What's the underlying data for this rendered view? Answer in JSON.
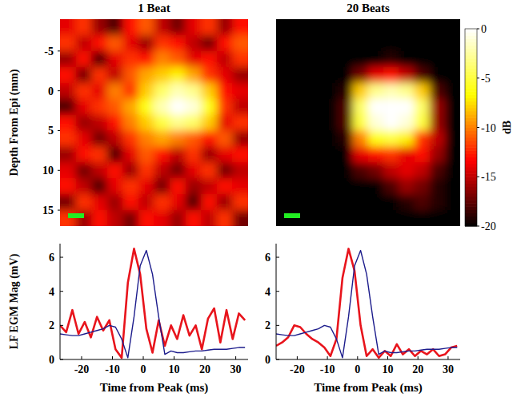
{
  "chart_data": [
    {
      "type": "heatmap",
      "title": "1 Beat",
      "y_label": "Depth From Epi (mm)",
      "y": [
        -8,
        -6,
        -4,
        -2,
        0,
        2,
        4,
        6,
        8,
        10,
        12,
        14,
        16
      ],
      "ylim": [
        -9,
        17
      ],
      "yticks": [
        -5,
        0,
        5,
        10,
        15
      ],
      "zlim": [
        -20,
        0
      ],
      "cells": [
        [
          -14,
          -12,
          -16,
          -18,
          -13,
          -11,
          -15,
          -17,
          -14,
          -12,
          -16,
          -13
        ],
        [
          -12,
          -15,
          -13,
          -11,
          -14,
          -16,
          -12,
          -13,
          -15,
          -17,
          -13,
          -11
        ],
        [
          -16,
          -13,
          -18,
          -14,
          -12,
          -13,
          -10,
          -11,
          -14,
          -13,
          -15,
          -12
        ],
        [
          -13,
          -17,
          -12,
          -15,
          -11,
          -9,
          -8,
          -7,
          -9,
          -12,
          -14,
          -16
        ],
        [
          -15,
          -12,
          -14,
          -10,
          -12,
          -8,
          -4,
          -2,
          -3,
          -8,
          -13,
          -14
        ],
        [
          -18,
          -14,
          -12,
          -11,
          -9,
          -6,
          -2,
          0,
          -1,
          -6,
          -12,
          -15
        ],
        [
          -13,
          -16,
          -15,
          -13,
          -10,
          -8,
          -5,
          -3,
          -4,
          -8,
          -14,
          -12
        ],
        [
          -12,
          -14,
          -17,
          -15,
          -12,
          -10,
          -9,
          -10,
          -11,
          -13,
          -11,
          -16
        ],
        [
          -16,
          -13,
          -12,
          -18,
          -14,
          -11,
          -13,
          -15,
          -12,
          -16,
          -14,
          -13
        ],
        [
          -14,
          -17,
          -15,
          -13,
          -16,
          -12,
          -15,
          -17,
          -14,
          -12,
          -17,
          -15
        ],
        [
          -13,
          -15,
          -18,
          -14,
          -12,
          -14,
          -17,
          -13,
          -16,
          -15,
          -13,
          -14
        ],
        [
          -17,
          -12,
          -14,
          -16,
          -13,
          -15,
          -12,
          -14,
          -18,
          -13,
          -16,
          -12
        ],
        [
          -12,
          -16,
          -13,
          -15,
          -17,
          -13,
          -14,
          -16,
          -13,
          -15,
          -12,
          -17
        ]
      ]
    },
    {
      "type": "heatmap",
      "title": "20 Beats",
      "y": [
        -8,
        -6,
        -4,
        -2,
        0,
        2,
        4,
        6,
        8,
        10,
        12,
        14,
        16
      ],
      "ylim": [
        -9,
        17
      ],
      "zlim": [
        -20,
        0
      ],
      "zticks": [
        0,
        -5,
        -10,
        -15,
        -20
      ],
      "colorbar_label": "dB",
      "cells": [
        [
          -20,
          -20,
          -20,
          -20,
          -20,
          -20,
          -20,
          -20,
          -20,
          -20,
          -20,
          -20
        ],
        [
          -20,
          -20,
          -20,
          -20,
          -20,
          -20,
          -20,
          -20,
          -20,
          -20,
          -20,
          -20
        ],
        [
          -20,
          -20,
          -20,
          -20,
          -20,
          -20,
          -20,
          -19,
          -20,
          -20,
          -20,
          -20
        ],
        [
          -20,
          -20,
          -20,
          -20,
          -20,
          -17,
          -14,
          -13,
          -15,
          -18,
          -20,
          -20
        ],
        [
          -20,
          -20,
          -20,
          -20,
          -19,
          -8,
          -3,
          -2,
          -3,
          -8,
          -18,
          -20
        ],
        [
          -20,
          -20,
          -20,
          -20,
          -18,
          -4,
          0,
          0,
          0,
          -4,
          -16,
          -20
        ],
        [
          -20,
          -20,
          -20,
          -20,
          -18,
          -5,
          -1,
          0,
          -1,
          -5,
          -16,
          -20
        ],
        [
          -20,
          -20,
          -20,
          -20,
          -19,
          -10,
          -6,
          -5,
          -7,
          -12,
          -15,
          -20
        ],
        [
          -20,
          -20,
          -20,
          -20,
          -20,
          -14,
          -13,
          -12,
          -14,
          -13,
          -16,
          -20
        ],
        [
          -20,
          -20,
          -20,
          -20,
          -20,
          -18,
          -17,
          -15,
          -14,
          -15,
          -18,
          -20
        ],
        [
          -20,
          -20,
          -20,
          -20,
          -20,
          -20,
          -20,
          -18,
          -16,
          -17,
          -19,
          -20
        ],
        [
          -20,
          -20,
          -20,
          -20,
          -20,
          -20,
          -20,
          -20,
          -19,
          -18,
          -19,
          -20
        ],
        [
          -20,
          -20,
          -20,
          -20,
          -20,
          -20,
          -20,
          -20,
          -20,
          -20,
          -20,
          -20
        ]
      ]
    },
    {
      "type": "line",
      "x_label": "Time from Peak (ms)",
      "y_label": "LF EGM Mag (mV)",
      "x": [
        -27,
        -25,
        -23,
        -21,
        -19,
        -17,
        -15,
        -13,
        -11,
        -9,
        -7,
        -5,
        -3,
        -1,
        1,
        3,
        5,
        7,
        9,
        11,
        13,
        15,
        17,
        19,
        21,
        23,
        25,
        27,
        29,
        31,
        33
      ],
      "xlim": [
        -27,
        34
      ],
      "xticks": [
        -20,
        -10,
        0,
        10,
        20,
        30
      ],
      "ylim": [
        0,
        6.8
      ],
      "yticks": [
        0,
        2,
        4,
        6
      ],
      "series": [
        {
          "color": "#e8141c",
          "values": [
            2.0,
            1.6,
            2.9,
            1.5,
            2.2,
            1.3,
            2.5,
            1.7,
            2.3,
            0.6,
            0.1,
            4.5,
            6.5,
            5.0,
            1.8,
            0.4,
            2.3,
            0.8,
            2.0,
            1.2,
            2.6,
            1.4,
            2.0,
            0.6,
            2.4,
            3.0,
            1.0,
            2.9,
            1.2,
            2.7,
            2.3
          ]
        },
        {
          "color": "#1c1c8c",
          "values": [
            1.5,
            1.45,
            1.4,
            1.4,
            1.5,
            1.6,
            1.7,
            1.8,
            2.0,
            1.9,
            1.2,
            0.1,
            2.5,
            5.5,
            6.4,
            5.0,
            2.5,
            0.3,
            0.5,
            0.4,
            0.4,
            0.45,
            0.5,
            0.5,
            0.55,
            0.6,
            0.6,
            0.6,
            0.65,
            0.7,
            0.7
          ]
        }
      ]
    },
    {
      "type": "line",
      "x_label": "Time from Peak (ms)",
      "x": [
        -27,
        -25,
        -23,
        -21,
        -19,
        -17,
        -15,
        -13,
        -11,
        -9,
        -7,
        -5,
        -3,
        -1,
        1,
        3,
        5,
        7,
        9,
        11,
        13,
        15,
        17,
        19,
        21,
        23,
        25,
        27,
        29,
        31,
        33
      ],
      "xlim": [
        -27,
        34
      ],
      "xticks": [
        -20,
        -10,
        0,
        10,
        20,
        30
      ],
      "ylim": [
        0,
        6.8
      ],
      "yticks": [
        0,
        2,
        4,
        6
      ],
      "series": [
        {
          "color": "#e8141c",
          "values": [
            0.8,
            1.0,
            1.3,
            2.0,
            1.9,
            1.5,
            1.2,
            1.0,
            0.7,
            0.2,
            1.2,
            4.8,
            6.5,
            5.2,
            2.0,
            0.2,
            0.6,
            0.1,
            0.5,
            0.2,
            0.9,
            0.3,
            0.6,
            0.2,
            0.5,
            0.3,
            0.6,
            0.2,
            0.3,
            0.7,
            0.8
          ]
        },
        {
          "color": "#1c1c8c",
          "values": [
            1.5,
            1.45,
            1.4,
            1.4,
            1.5,
            1.6,
            1.7,
            1.8,
            2.0,
            1.9,
            1.2,
            0.1,
            2.5,
            5.5,
            6.4,
            5.0,
            2.5,
            0.3,
            0.5,
            0.4,
            0.4,
            0.45,
            0.5,
            0.5,
            0.55,
            0.6,
            0.6,
            0.6,
            0.65,
            0.7,
            0.7
          ]
        }
      ]
    }
  ]
}
